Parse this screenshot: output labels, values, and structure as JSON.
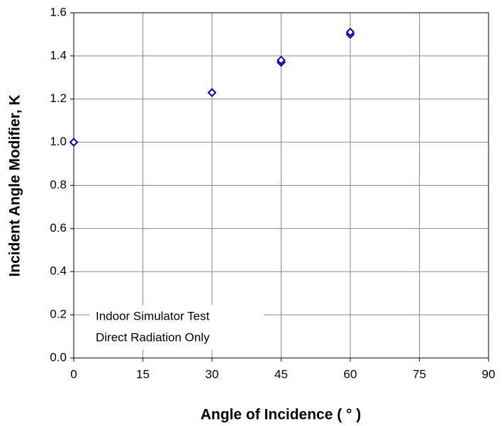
{
  "chart_data": {
    "type": "scatter",
    "x_label": "Angle of Incidence ( ° )",
    "y_label": "Incident Angle Modifier, K",
    "annotations": [
      "Indoor Simulator Test",
      "Direct Radiation Only"
    ],
    "series": [
      {
        "color": "#0000cc",
        "x": [
          0,
          30,
          45,
          45,
          60,
          60
        ],
        "values": [
          1.0,
          1.23,
          1.37,
          1.38,
          1.5,
          1.51
        ]
      }
    ],
    "xlim": [
      0,
      90
    ],
    "xticks": [
      0,
      15,
      30,
      45,
      60,
      75,
      90
    ],
    "ylim": [
      0,
      1.6
    ],
    "yticks": [
      {
        "value": 0,
        "label": "0.0"
      },
      {
        "value": 0.2,
        "label": "0.2"
      },
      {
        "value": 0.4,
        "label": "0.4"
      },
      {
        "value": 0.6,
        "label": "0.6"
      },
      {
        "value": 0.8,
        "label": "0.8"
      },
      {
        "value": 1,
        "label": "1.0"
      },
      {
        "value": 1.2,
        "label": "1.2"
      },
      {
        "value": 1.4,
        "label": "1.4"
      },
      {
        "value": 1.6,
        "label": "1.6"
      }
    ],
    "grid": true
  }
}
